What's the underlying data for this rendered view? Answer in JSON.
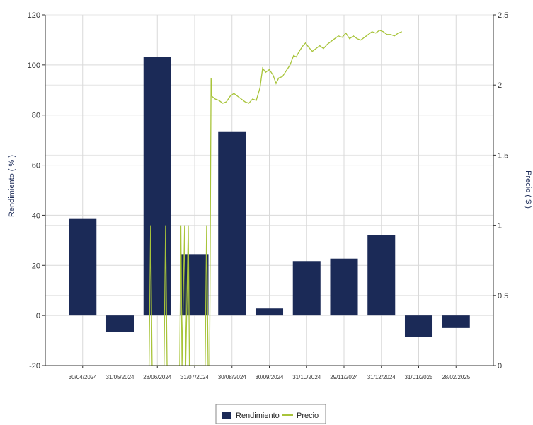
{
  "chart_data": {
    "type": "bar",
    "categories": [
      "30/04/2024",
      "31/05/2024",
      "28/06/2024",
      "31/07/2024",
      "30/08/2024",
      "30/09/2024",
      "31/10/2024",
      "29/11/2024",
      "31/12/2024",
      "31/01/2025",
      "28/02/2025"
    ],
    "series": [
      {
        "name": "Rendimiento",
        "type": "bar",
        "axis": "left",
        "color": "#1b2a57",
        "values": [
          38.8,
          -6.5,
          103.2,
          24.5,
          73.5,
          2.8,
          21.7,
          22.7,
          32.0,
          -8.5,
          -5.0
        ]
      },
      {
        "name": "Precio",
        "type": "line",
        "axis": "right",
        "color": "#a8c43a",
        "points": [
          [
            2.78,
            0
          ],
          [
            2.82,
            1.0
          ],
          [
            2.86,
            0
          ],
          [
            3.18,
            0
          ],
          [
            3.22,
            1.0
          ],
          [
            3.26,
            0
          ],
          [
            3.6,
            0
          ],
          [
            3.63,
            1.0
          ],
          [
            3.66,
            0
          ],
          [
            3.73,
            1.0
          ],
          [
            3.76,
            0
          ],
          [
            3.83,
            1.0
          ],
          [
            3.86,
            0
          ],
          [
            4.28,
            0
          ],
          [
            4.32,
            1.0
          ],
          [
            4.36,
            0
          ],
          [
            4.4,
            0
          ],
          [
            4.44,
            2.05
          ],
          [
            4.46,
            1.92
          ],
          [
            4.55,
            1.9
          ],
          [
            4.65,
            1.89
          ],
          [
            4.75,
            1.87
          ],
          [
            4.85,
            1.88
          ],
          [
            4.95,
            1.92
          ],
          [
            5.05,
            1.94
          ],
          [
            5.15,
            1.92
          ],
          [
            5.25,
            1.9
          ],
          [
            5.35,
            1.88
          ],
          [
            5.45,
            1.87
          ],
          [
            5.55,
            1.9
          ],
          [
            5.65,
            1.89
          ],
          [
            5.75,
            1.98
          ],
          [
            5.82,
            2.12
          ],
          [
            5.9,
            2.09
          ],
          [
            6.0,
            2.11
          ],
          [
            6.1,
            2.07
          ],
          [
            6.18,
            2.01
          ],
          [
            6.25,
            2.05
          ],
          [
            6.35,
            2.06
          ],
          [
            6.45,
            2.1
          ],
          [
            6.55,
            2.14
          ],
          [
            6.65,
            2.21
          ],
          [
            6.72,
            2.2
          ],
          [
            6.8,
            2.24
          ],
          [
            6.9,
            2.28
          ],
          [
            6.97,
            2.3
          ],
          [
            7.05,
            2.27
          ],
          [
            7.15,
            2.24
          ],
          [
            7.25,
            2.26
          ],
          [
            7.35,
            2.28
          ],
          [
            7.45,
            2.26
          ],
          [
            7.55,
            2.29
          ],
          [
            7.65,
            2.31
          ],
          [
            7.75,
            2.33
          ],
          [
            7.85,
            2.35
          ],
          [
            7.95,
            2.34
          ],
          [
            8.05,
            2.37
          ],
          [
            8.15,
            2.33
          ],
          [
            8.25,
            2.35
          ],
          [
            8.35,
            2.33
          ],
          [
            8.45,
            2.32
          ],
          [
            8.55,
            2.34
          ],
          [
            8.65,
            2.36
          ],
          [
            8.75,
            2.38
          ],
          [
            8.85,
            2.37
          ],
          [
            8.95,
            2.39
          ],
          [
            9.05,
            2.38
          ],
          [
            9.15,
            2.36
          ],
          [
            9.25,
            2.36
          ],
          [
            9.35,
            2.35
          ],
          [
            9.45,
            2.37
          ],
          [
            9.55,
            2.38
          ]
        ]
      }
    ],
    "ylabel": "Rendimiento ( % )",
    "y2label": "Precio ( $ )",
    "ylim": [
      -20,
      120
    ],
    "y2lim": [
      0,
      2.5
    ],
    "yticks": [
      -20,
      0,
      20,
      40,
      60,
      80,
      100,
      120
    ],
    "y2ticks": [
      "0",
      "0.5",
      "1",
      "1.5",
      "2",
      "2.5"
    ],
    "grid": true,
    "legend": "bottom"
  }
}
